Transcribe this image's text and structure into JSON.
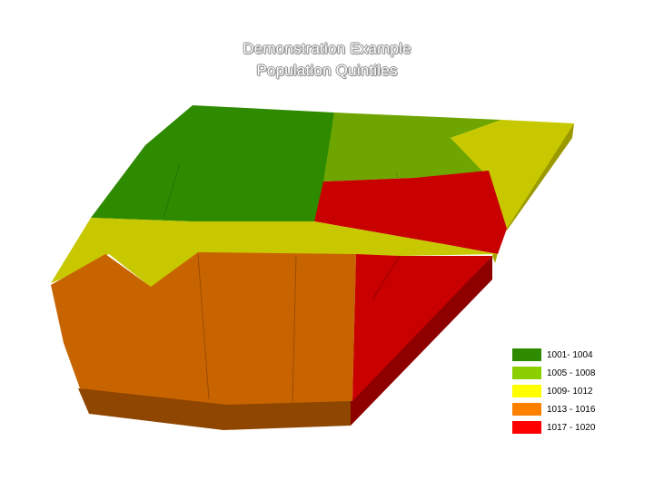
{
  "map": {
    "title_line1": "Demonstration Example",
    "title_line2": "Population Quintiles"
  },
  "legend": {
    "items": [
      {
        "label": "1001- 1004",
        "color": "#2e8b00"
      },
      {
        "label": "1005 - 1008",
        "color": "#8ccf00"
      },
      {
        "label": "1009- 1012",
        "color": "#ffff00"
      },
      {
        "label": "1013 - 1016",
        "color": "#ff8000"
      },
      {
        "label": "1017 - 1020",
        "color": "#ff0000"
      }
    ]
  },
  "colors": {
    "dark_green": "#2e8b00",
    "light_green": "#6ea500",
    "yellow": "#c8c800",
    "orange": "#c86400",
    "red": "#c80000"
  }
}
